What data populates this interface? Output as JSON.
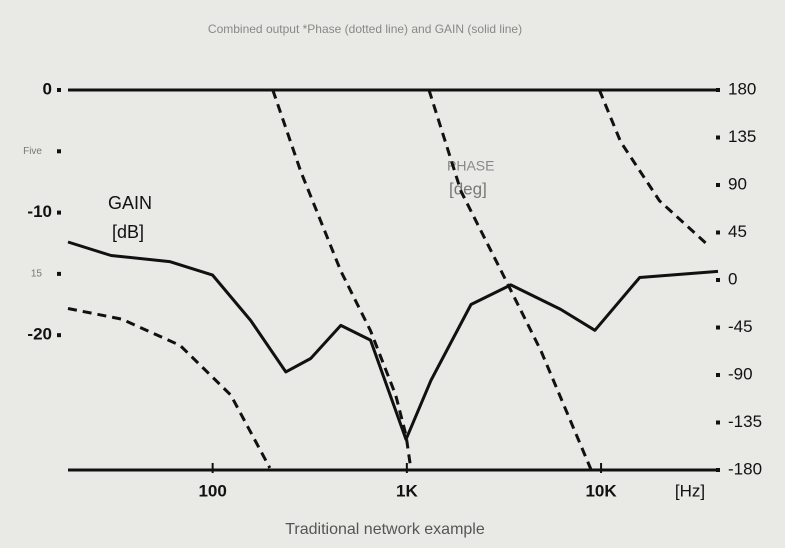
{
  "chart_data": {
    "type": "line",
    "title": "Combined output *Phase (dotted line) and GAIN (solid line)",
    "subtitle": "Traditional network example",
    "x_label": "[Hz]",
    "y_label": [
      "GAIN",
      "[dB]"
    ],
    "y2_label": [
      "PHASE",
      "[deg]"
    ],
    "x_log": true,
    "xlim": [
      18,
      40000
    ],
    "xticks": [
      100,
      {
        "value": 1000,
        "label": "1K"
      },
      {
        "value": 10000,
        "label": "10K"
      }
    ],
    "ylim": [
      -31,
      0
    ],
    "yticks": [
      0,
      {
        "value": -5,
        "label": "Five"
      },
      -10,
      {
        "value": -15,
        "label": "15"
      },
      -20
    ],
    "y2lim": [
      -180,
      180
    ],
    "y2ticks": [
      180,
      135,
      90,
      45,
      0,
      -45,
      -90,
      -135,
      -180
    ],
    "series": [
      {
        "color": "#111111",
        "style": "solid",
        "x": [
          18,
          30,
          60,
          100,
          157,
          238,
          320,
          457,
          650,
          990,
          1330,
          2140,
          3430,
          6200,
          9300,
          15800,
          40000
        ],
        "values": [
          -12.4,
          -13.5,
          -14,
          -15.1,
          -18.8,
          -23,
          -21.9,
          -19.2,
          -20.4,
          -28.5,
          -23.7,
          -17.5,
          -15.9,
          -17.9,
          -19.6,
          -15.3,
          -14.8
        ]
      },
      {
        "color": "#111111",
        "style": "dashed",
        "axis": "y2",
        "x": [
          18,
          34,
          68,
          124,
          197,
          null,
          204,
          284,
          457,
          650,
          876,
          990,
          1050,
          null,
          1300,
          1900,
          3060,
          4900,
          8900,
          null,
          9800,
          12600,
          20000,
          34600
        ],
        "values": [
          -27,
          -37,
          -62,
          -109,
          -178,
          null,
          180,
          103,
          8.5,
          -48,
          -109,
          -147,
          -180,
          null,
          180,
          84,
          8.5,
          -67,
          -180,
          null,
          180,
          131,
          75,
          35
        ]
      }
    ]
  }
}
